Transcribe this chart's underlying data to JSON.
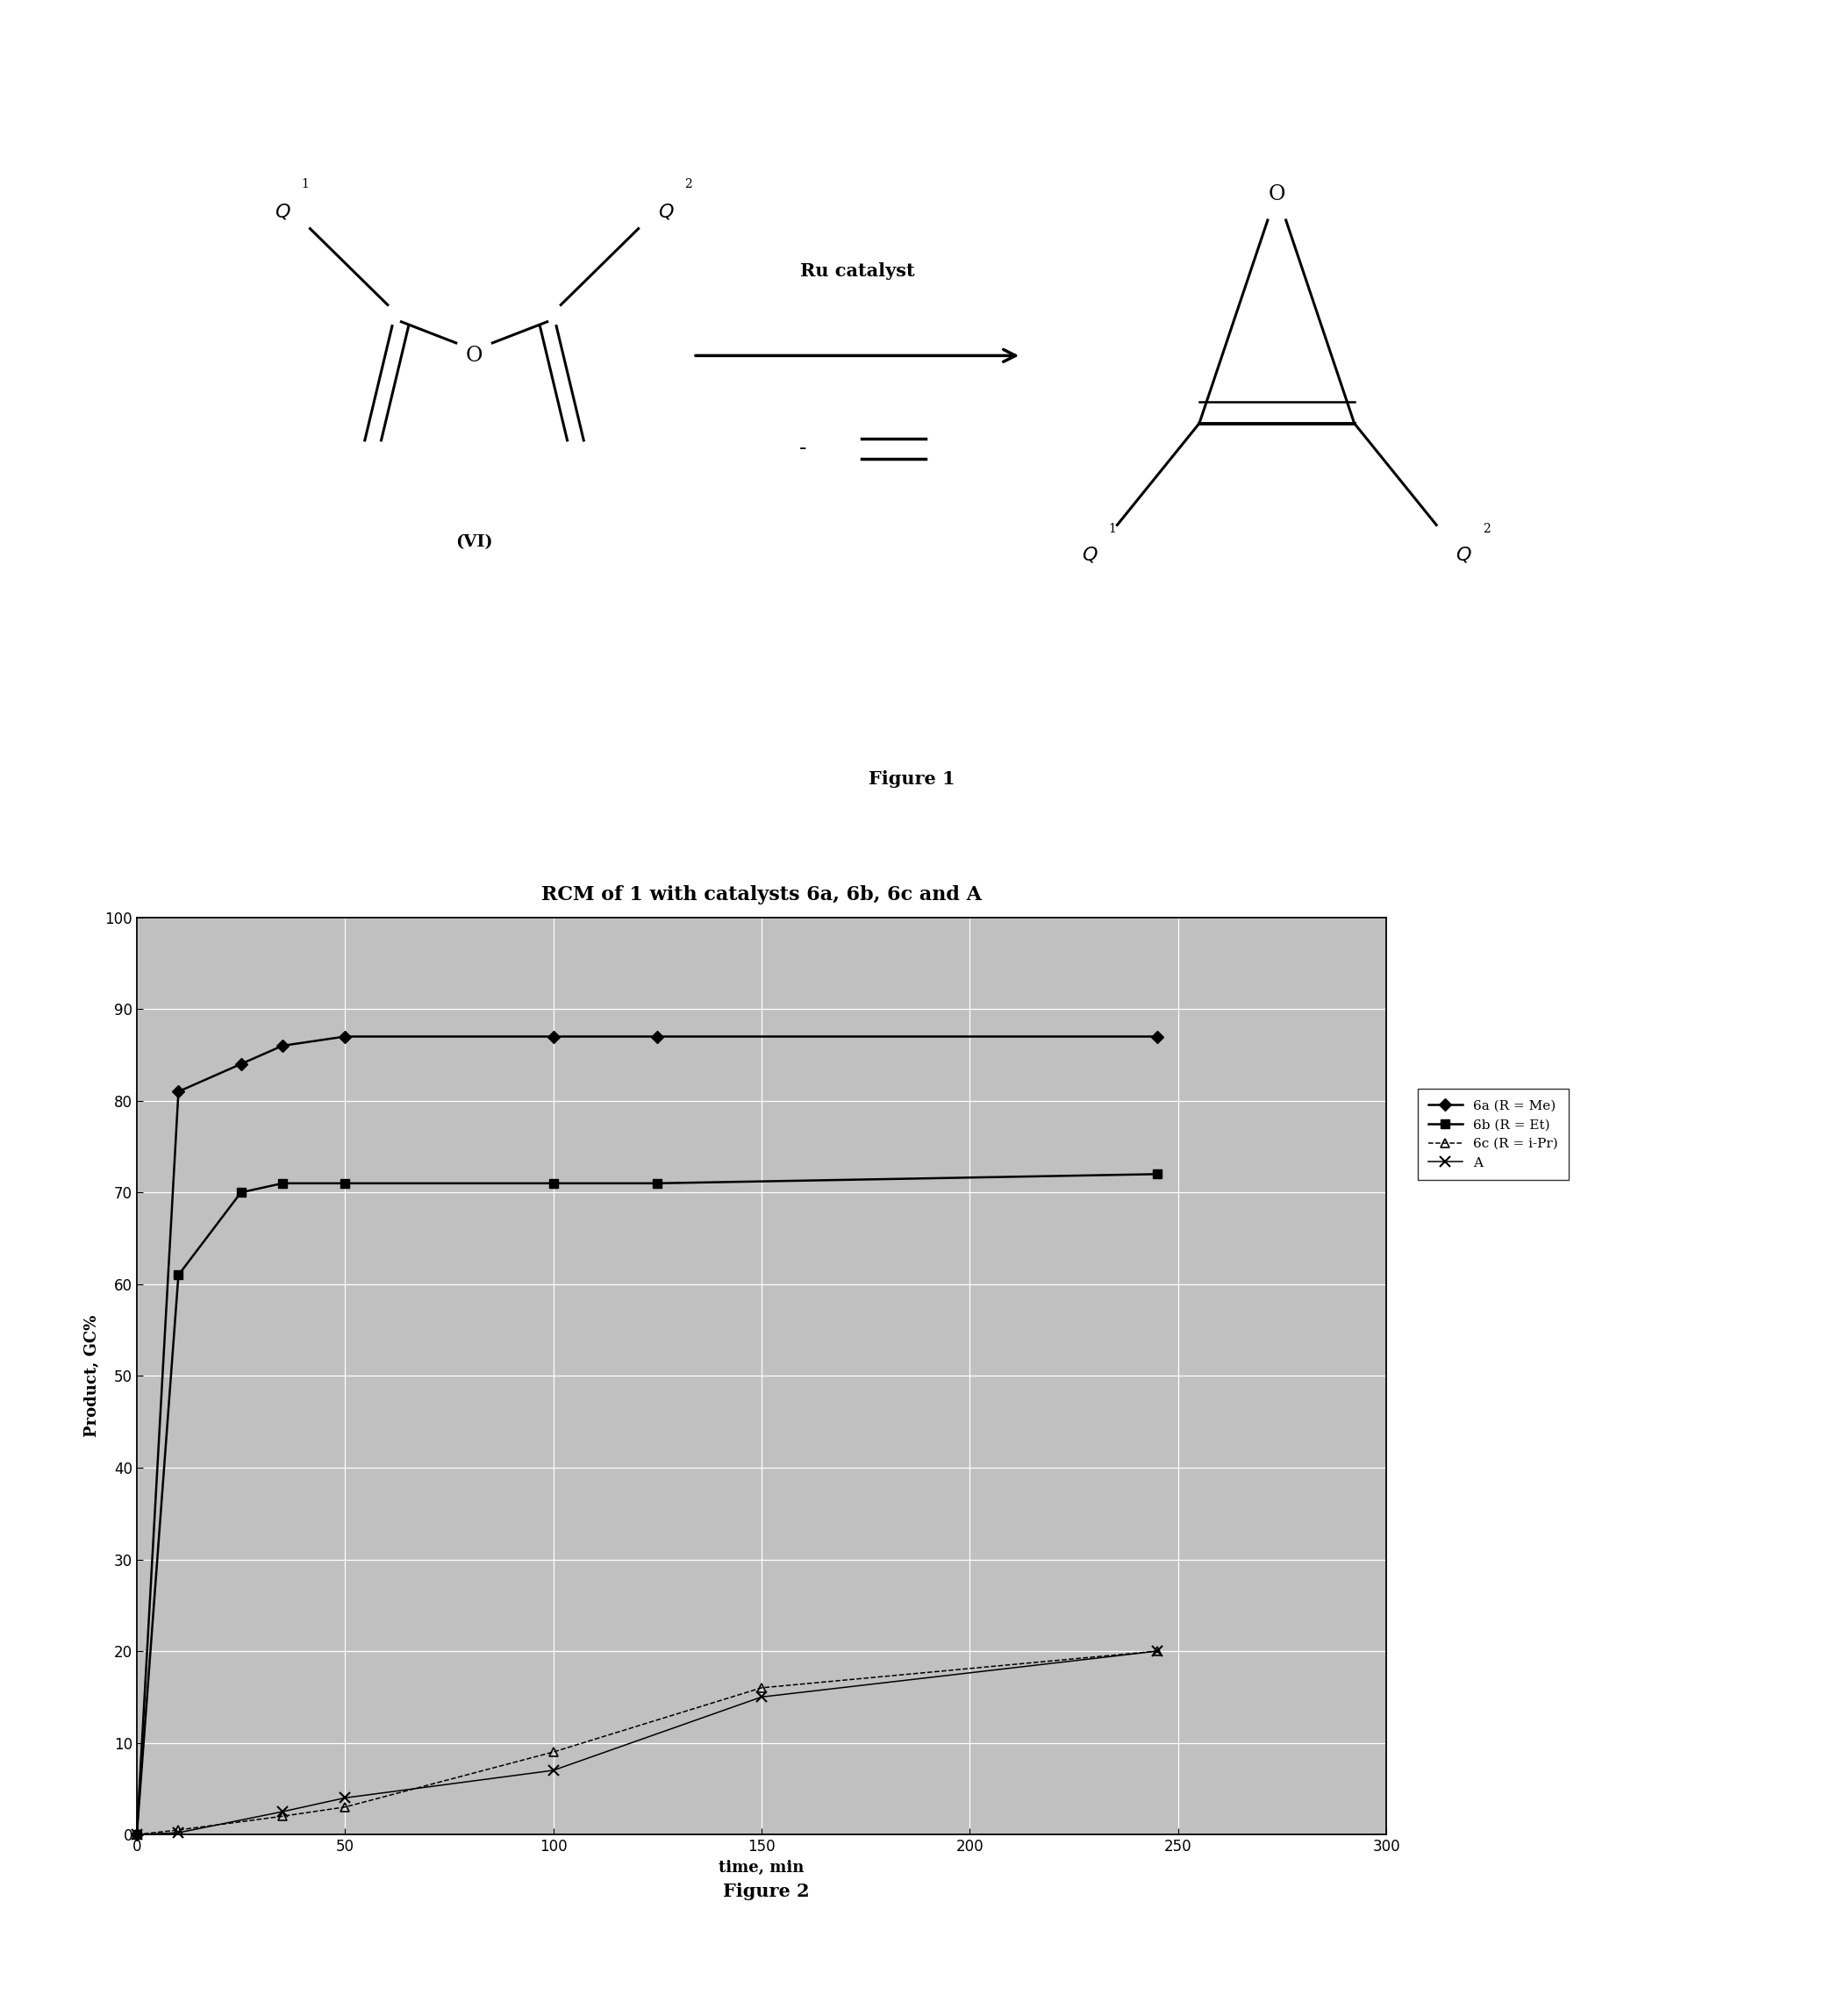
{
  "title": "RCM of 1 with catalysts 6a, 6b, 6c and A",
  "xlabel": "time, min",
  "ylabel": "Product, GC%",
  "xlim": [
    0,
    300
  ],
  "ylim": [
    0,
    100
  ],
  "xticks": [
    0,
    50,
    100,
    150,
    200,
    250,
    300
  ],
  "yticks": [
    0,
    10,
    20,
    30,
    40,
    50,
    60,
    70,
    80,
    90,
    100
  ],
  "series_6a_x": [
    0,
    10,
    25,
    35,
    50,
    100,
    125,
    245
  ],
  "series_6a_y": [
    0,
    81,
    84,
    86,
    87,
    87,
    87,
    87
  ],
  "series_6a_label": "6a (R = Me)",
  "series_6b_x": [
    0,
    10,
    25,
    35,
    50,
    100,
    125,
    245
  ],
  "series_6b_y": [
    0,
    61,
    70,
    71,
    71,
    71,
    71,
    72
  ],
  "series_6b_label": "6b (R = Et)",
  "series_6c_x": [
    0,
    10,
    35,
    50,
    100,
    150,
    245
  ],
  "series_6c_y": [
    0,
    0.5,
    2,
    3,
    9,
    16,
    20
  ],
  "series_6c_label": "6c (R = i-Pr)",
  "series_A_x": [
    0,
    10,
    35,
    50,
    100,
    150,
    245
  ],
  "series_A_y": [
    0,
    0.2,
    2.5,
    4,
    7,
    15,
    20
  ],
  "series_A_label": "A",
  "line_color": "#000000",
  "plot_bg_color": "#c0c0c0",
  "grid_color": "#ffffff",
  "fig_bg_color": "#ffffff",
  "title_fontsize": 16,
  "axis_fontsize": 13,
  "tick_fontsize": 12,
  "legend_fontsize": 11,
  "figure1_label": "Figure 1",
  "figure2_label": "Figure 2"
}
